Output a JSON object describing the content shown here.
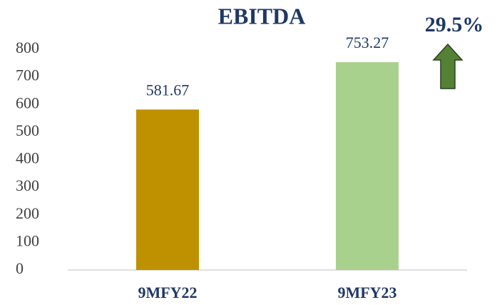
{
  "chart_data": {
    "type": "bar",
    "title": "EBITDA",
    "categories": [
      "9MFY22",
      "9MFY23"
    ],
    "values": [
      581.67,
      753.27
    ],
    "colors": [
      "#bf9000",
      "#a9d18e"
    ],
    "ylim": [
      0,
      800
    ],
    "yticks": [
      0,
      100,
      200,
      300,
      400,
      500,
      600,
      700,
      800
    ],
    "grid": false,
    "annotation": "29.5%"
  }
}
